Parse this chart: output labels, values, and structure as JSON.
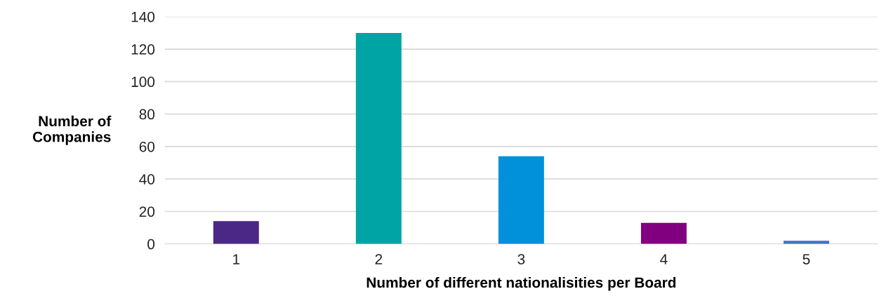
{
  "chart_data": {
    "type": "bar",
    "xlabel": "Number of different nationalisities per Board",
    "ylabel": "Number of\nCompanies",
    "categories": [
      "1",
      "2",
      "3",
      "4",
      "5"
    ],
    "values": [
      14,
      130,
      54,
      13,
      2
    ],
    "colors": [
      "#4b2885",
      "#00a4a4",
      "#0091da",
      "#800080",
      "#4472c4"
    ],
    "ylim": [
      0,
      140
    ],
    "yticks": [
      0,
      20,
      40,
      60,
      80,
      100,
      120,
      140
    ],
    "grid": "y"
  }
}
